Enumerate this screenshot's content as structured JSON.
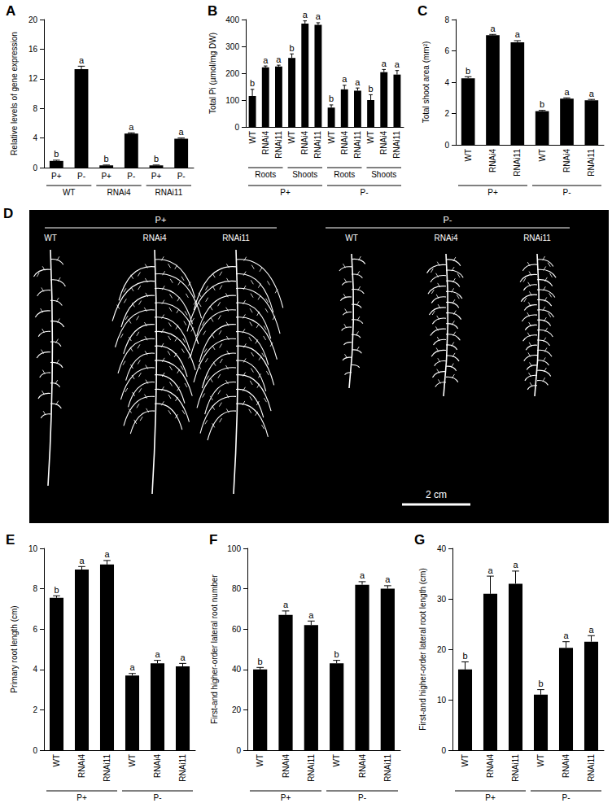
{
  "chart_data": [
    {
      "type": "bar",
      "title": "A",
      "ylabel": "Relative levels of gene expression",
      "categories": [
        "P+",
        "P-",
        "P+",
        "P-",
        "P+",
        "P-"
      ],
      "groups": [
        [
          {
            "label": "WT",
            "span": 2
          },
          {
            "label": "RNAi4",
            "span": 2
          },
          {
            "label": "RNAi11",
            "span": 2
          }
        ]
      ],
      "values": [
        0.9,
        13.3,
        0.3,
        4.6,
        0.3,
        3.9
      ],
      "errors": [
        0.1,
        0.4,
        0.05,
        0.1,
        0.05,
        0.1
      ],
      "letters": [
        "b",
        "a",
        "b",
        "a",
        "b",
        "a"
      ],
      "color": "#000000",
      "ylim": [
        0,
        20
      ],
      "yticks": [
        0,
        4,
        8,
        12,
        16,
        20
      ],
      "grid": false
    },
    {
      "type": "bar",
      "title": "B",
      "ylabel": "Total Pi (µmol/mg DW)",
      "categories": [
        "WT",
        "RNAi4",
        "RNAi11",
        "WT",
        "RNAi4",
        "RNAi11",
        "WT",
        "RNAi4",
        "RNAi11",
        "WT",
        "RNAi4",
        "RNAi11"
      ],
      "groups": [
        [
          {
            "label": "Roots",
            "span": 3
          },
          {
            "label": "Shoots",
            "span": 3
          },
          {
            "label": "Roots",
            "span": 3
          },
          {
            "label": "Shoots",
            "span": 3
          }
        ],
        [
          {
            "label": "P+",
            "span": 6
          },
          {
            "label": "P-",
            "span": 6
          }
        ]
      ],
      "values": [
        115,
        222,
        225,
        257,
        385,
        380,
        72,
        140,
        135,
        100,
        204,
        195
      ],
      "errors": [
        25,
        5,
        5,
        15,
        10,
        8,
        10,
        15,
        10,
        20,
        10,
        15
      ],
      "letters": [
        "b",
        "a",
        "a",
        "b",
        "a",
        "a",
        "b",
        "a",
        "a",
        "b",
        "a",
        "a"
      ],
      "color": "#000000",
      "ylim": [
        0,
        400
      ],
      "yticks": [
        0,
        100,
        200,
        300,
        400
      ],
      "grid": false
    },
    {
      "type": "bar",
      "title": "C",
      "ylabel": "Total shoot area (mm²)",
      "categories": [
        "WT",
        "RNAi4",
        "RNAi11",
        "WT",
        "RNAi4",
        "RNAi11"
      ],
      "groups": [
        [
          {
            "label": "P+",
            "span": 3
          },
          {
            "label": "P-",
            "span": 3
          }
        ]
      ],
      "values": [
        4.25,
        7.0,
        6.55,
        2.15,
        2.95,
        2.85
      ],
      "errors": [
        0.1,
        0.05,
        0.1,
        0.05,
        0.05,
        0.05
      ],
      "letters": [
        "b",
        "a",
        "a",
        "b",
        "a",
        "a"
      ],
      "color": "#000000",
      "ylim": [
        0,
        8
      ],
      "yticks": [
        0,
        2,
        4,
        6,
        8
      ],
      "grid": false
    },
    {
      "type": "bar",
      "title": "E",
      "ylabel": "Primary root length (cm)",
      "categories": [
        "WT",
        "RNAi4",
        "RNAi11",
        "WT",
        "RNAi4",
        "RNAi11"
      ],
      "groups": [
        [
          {
            "label": "P+",
            "span": 3
          },
          {
            "label": "P-",
            "span": 3
          }
        ]
      ],
      "values": [
        7.55,
        8.95,
        9.2,
        3.7,
        4.3,
        4.15
      ],
      "errors": [
        0.1,
        0.15,
        0.2,
        0.1,
        0.15,
        0.15
      ],
      "letters": [
        "b",
        "a",
        "a",
        "a",
        "a",
        "a"
      ],
      "color": "#000000",
      "ylim": [
        0,
        10
      ],
      "yticks": [
        0,
        2,
        4,
        6,
        8,
        10
      ],
      "grid": false
    },
    {
      "type": "bar",
      "title": "F",
      "ylabel": "First-and higher-order lateral root number",
      "categories": [
        "WT",
        "RNAi4",
        "RNAi11",
        "WT",
        "RNAi4",
        "RNAi11"
      ],
      "groups": [
        [
          {
            "label": "P+",
            "span": 3
          },
          {
            "label": "P-",
            "span": 3
          }
        ]
      ],
      "values": [
        40,
        67,
        62,
        43,
        82,
        80
      ],
      "errors": [
        1,
        2,
        2,
        1.5,
        1.5,
        1.5
      ],
      "letters": [
        "b",
        "a",
        "a",
        "b",
        "a",
        "a"
      ],
      "color": "#000000",
      "ylim": [
        0,
        100
      ],
      "yticks": [
        0,
        20,
        40,
        60,
        80,
        100
      ],
      "grid": false
    },
    {
      "type": "bar",
      "title": "G",
      "ylabel": "First-and higher-order lateral root length (cm)",
      "categories": [
        "WT",
        "RNAi4",
        "RNAi11",
        "WT",
        "RNAi4",
        "RNAi11"
      ],
      "groups": [
        [
          {
            "label": "P+",
            "span": 3
          },
          {
            "label": "P-",
            "span": 3
          }
        ]
      ],
      "values": [
        16,
        31,
        33,
        11,
        20.3,
        21.5
      ],
      "errors": [
        1.5,
        3.5,
        2.5,
        1,
        1.2,
        1.2
      ],
      "letters": [
        "b",
        "a",
        "a",
        "b",
        "a",
        "a"
      ],
      "color": "#000000",
      "ylim": [
        0,
        40
      ],
      "yticks": [
        0,
        10,
        20,
        30,
        40
      ],
      "grid": false
    }
  ],
  "image": {
    "title": "D",
    "groups": [
      {
        "label": "P+",
        "items": [
          "WT",
          "RNAi4",
          "RNAi11"
        ]
      },
      {
        "label": "P-",
        "items": [
          "WT",
          "RNAi4",
          "RNAi11"
        ]
      }
    ],
    "scale_bar": "2 cm"
  }
}
